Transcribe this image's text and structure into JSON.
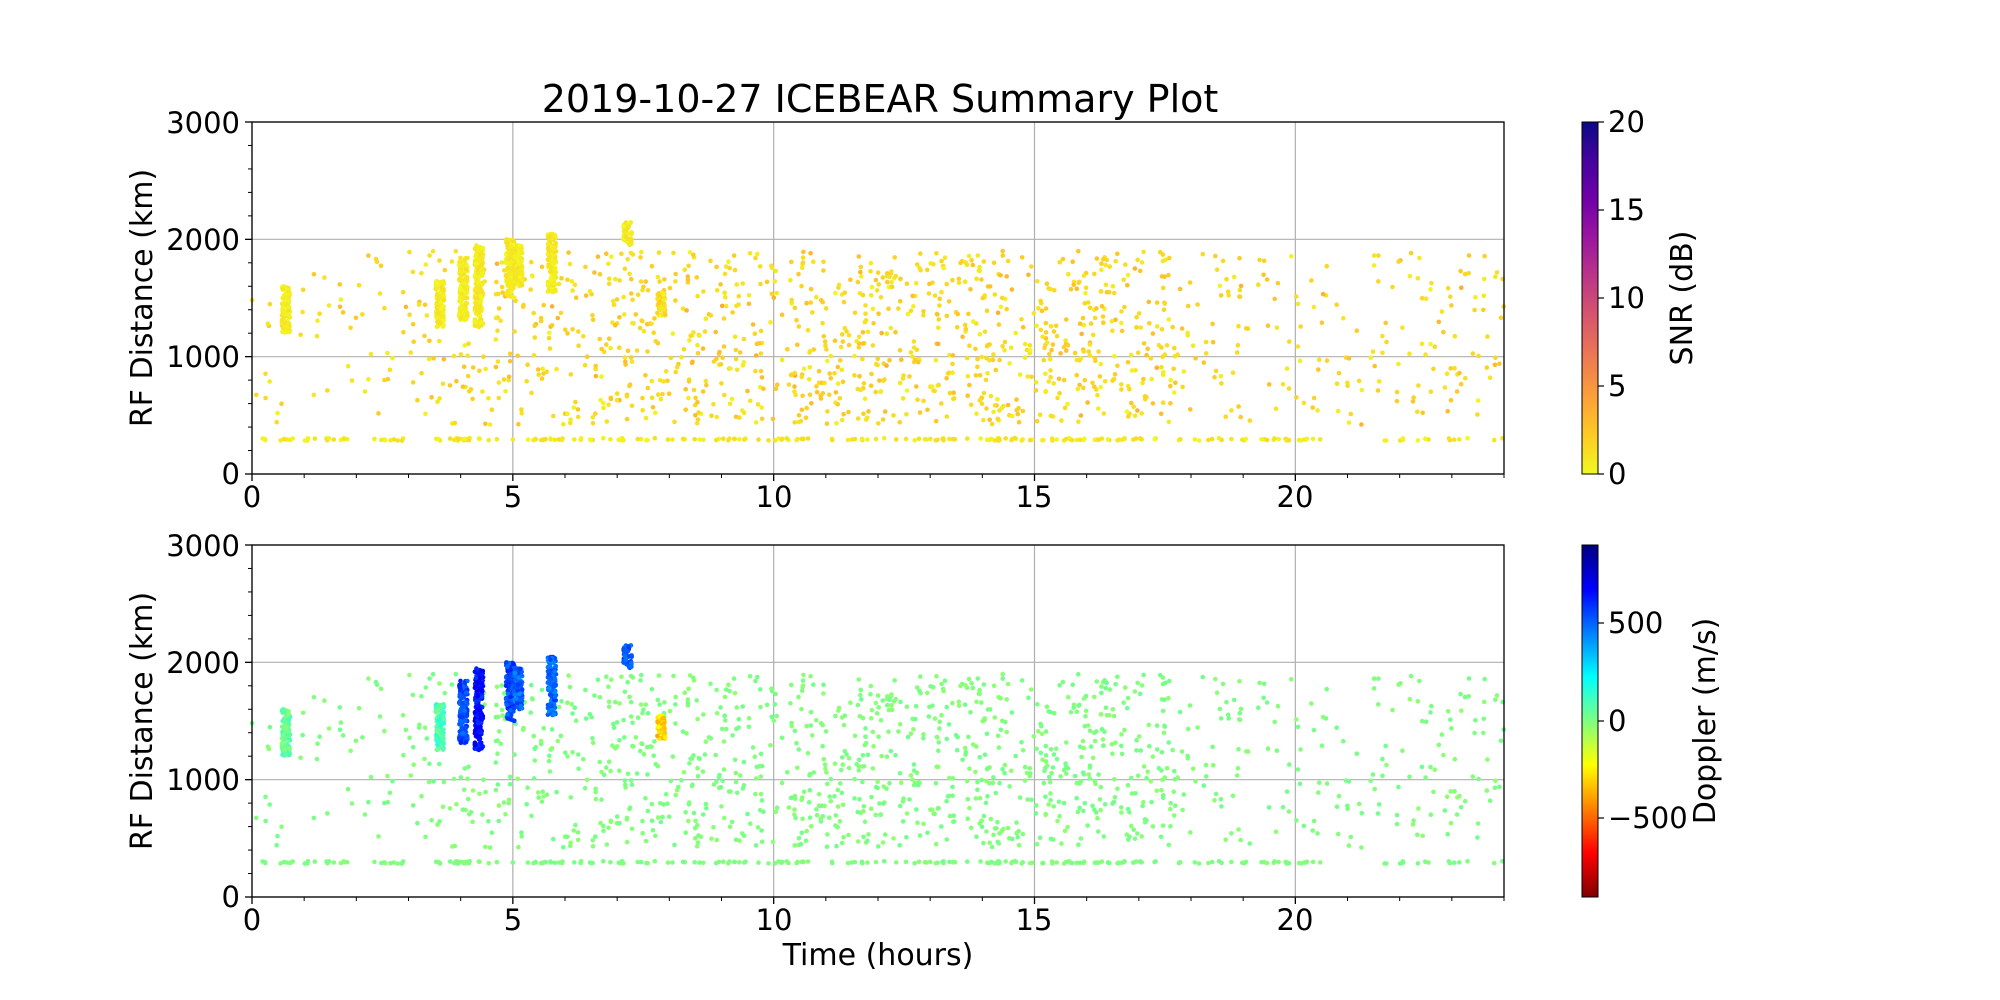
{
  "title": "2019-10-27 ICEBEAR Summary Plot",
  "chart_data": [
    {
      "type": "scatter",
      "name": "snr-panel",
      "title": "2019-10-27 ICEBEAR Summary Plot",
      "xlabel": "",
      "ylabel": "RF Distance (km)",
      "xlim": [
        0,
        24
      ],
      "ylim": [
        0,
        3000
      ],
      "xticks": [
        0,
        5,
        10,
        15,
        20
      ],
      "yticks": [
        0,
        1000,
        2000,
        3000
      ],
      "grid": true,
      "colorbar": {
        "label": "SNR (dB)",
        "range": [
          0,
          20
        ],
        "ticks": [
          0,
          5,
          10,
          15,
          20
        ],
        "colormap": "plasma_r",
        "stops": [
          "#f0f921",
          "#fdca26",
          "#fb9f3a",
          "#ed7953",
          "#d8576b",
          "#bd3786",
          "#9c179e",
          "#7201a8",
          "#46039f",
          "#0d0887"
        ]
      },
      "point_color_hint": "mostly 0-5 dB (yellow-orange)"
    },
    {
      "type": "scatter",
      "name": "doppler-panel",
      "title": "",
      "xlabel": "Time (hours)",
      "ylabel": "RF Distance (km)",
      "xlim": [
        0,
        24
      ],
      "ylim": [
        0,
        3000
      ],
      "xticks": [
        0,
        5,
        10,
        15,
        20
      ],
      "yticks": [
        0,
        1000,
        2000,
        3000
      ],
      "grid": true,
      "colorbar": {
        "label": "Doppler (m/s)",
        "range": [
          -900,
          900
        ],
        "ticks": [
          -500,
          0,
          500
        ],
        "tick_labels": [
          "−500",
          "0",
          "500"
        ],
        "colormap": "jet_r",
        "stops": [
          "#800000",
          "#ff0000",
          "#ff8000",
          "#ffff00",
          "#80ff80",
          "#00ffff",
          "#0080ff",
          "#0000ff",
          "#000080"
        ]
      },
      "point_color_hint": "mostly ~0 m/s (light green); streaks near 4-6 h ~+500 m/s (blue)"
    }
  ],
  "data_summary": {
    "time_range_hours": [
      0,
      24
    ],
    "persistent_band_km": 300,
    "scattered_cloud_km": [
      400,
      1900
    ],
    "streaks": [
      {
        "t": 0.65,
        "r": [
          1200,
          1600
        ],
        "snr": 1,
        "doppler": 50
      },
      {
        "t": 3.6,
        "r": [
          1250,
          1650
        ],
        "snr": 1,
        "doppler": 100
      },
      {
        "t": 4.05,
        "r": [
          1300,
          1850
        ],
        "snr": 1,
        "doppler": 550
      },
      {
        "t": 4.35,
        "r": [
          1250,
          1950
        ],
        "snr": 1,
        "doppler": 650
      },
      {
        "t": 4.95,
        "r": [
          1500,
          2000
        ],
        "snr": 1,
        "doppler": 550
      },
      {
        "t": 5.1,
        "r": [
          1600,
          1950
        ],
        "snr": 1,
        "doppler": 500
      },
      {
        "t": 5.75,
        "r": [
          1550,
          2050
        ],
        "snr": 1,
        "doppler": 500
      },
      {
        "t": 7.2,
        "r": [
          1950,
          2150
        ],
        "snr": 1,
        "doppler": 500
      },
      {
        "t": 7.85,
        "r": [
          1350,
          1550
        ],
        "snr": 2,
        "doppler": -300
      }
    ]
  }
}
